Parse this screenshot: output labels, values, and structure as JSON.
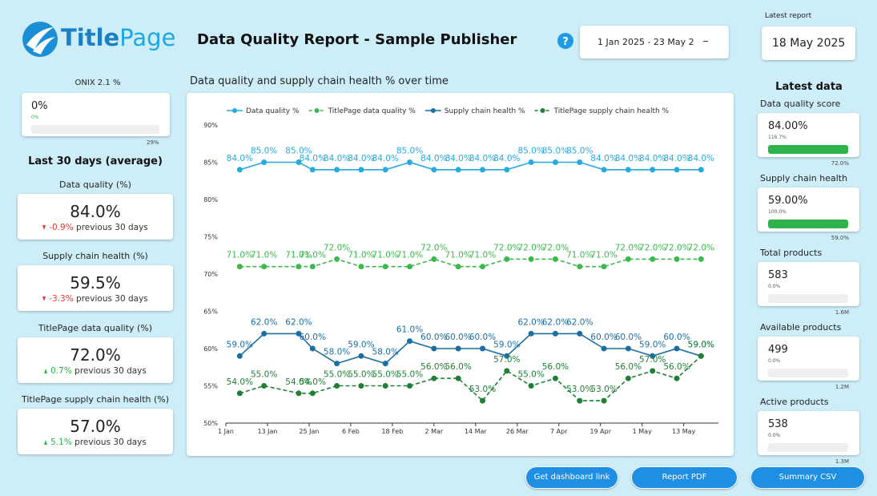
{
  "header": {
    "logo_bold": "Title",
    "logo_light": "Page",
    "title": "Data Quality Report - Sample Publisher",
    "date_range": "1 Jan 2025 - 23 May 2",
    "latest_report": {
      "label": "Latest report",
      "value": "18 May 2025"
    }
  },
  "onix": {
    "label": "ONIX 2.1 %",
    "value": "0%",
    "sub": "0%",
    "max": "29%"
  },
  "last30": {
    "heading": "Last 30 days (average)",
    "cards": [
      {
        "label": "Data quality (%)",
        "value": "84.0%",
        "delta": "-0.9%",
        "note": "previous 30 days"
      },
      {
        "label": "Supply chain health (%)",
        "value": "59.5%",
        "delta": "-3.3%",
        "note": "previous 30 days"
      },
      {
        "label": "TitlePage data quality (%)",
        "value": "72.0%",
        "delta": "0.7%",
        "note": "previous 30 days"
      },
      {
        "label": "TitlePage supply chain health (%)",
        "value": "57.0%",
        "delta": "5.1%",
        "note": "previous 30 days"
      }
    ]
  },
  "latest": {
    "heading": "Latest data",
    "cards": [
      {
        "label": "Data quality score",
        "value": "84.00%",
        "sub": "116.7%",
        "max": "72.0%",
        "color": "#2db34a"
      },
      {
        "label": "Supply chain health",
        "value": "59.00%",
        "sub": "100.0%",
        "max": "59.0%",
        "color": "#2db34a"
      },
      {
        "label": "Total products",
        "value": "583",
        "sub": "0.0%",
        "max": "1.6M",
        "color": "#eeeeee"
      },
      {
        "label": "Available products",
        "value": "499",
        "sub": "0.0%",
        "max": "1.2M",
        "color": "#eeeeee"
      },
      {
        "label": "Active products",
        "value": "538",
        "sub": "0.0%",
        "max": "1.3M",
        "color": "#eeeeee"
      }
    ]
  },
  "buttons": [
    "Get dashboard link",
    "Report PDF",
    "Summary CSV"
  ],
  "chart_data": {
    "type": "line",
    "title": "Data quality and supply chain health % over time",
    "x": [
      "5 Jan",
      "12 Jan",
      "22 Jan",
      "26 Jan",
      "2 Feb",
      "9 Feb",
      "16 Feb",
      "23 Feb",
      "2 Mar",
      "9 Mar",
      "16 Mar",
      "23 Mar",
      "30 Mar",
      "6 Apr",
      "13 Apr",
      "20 Apr",
      "27 Apr",
      "4 May",
      "11 May",
      "18 May"
    ],
    "xlim": [
      "1 Jan",
      "23 May"
    ],
    "xticks": [
      "1 Jan",
      "13 Jan",
      "25 Jan",
      "6 Feb",
      "18 Feb",
      "2 Mar",
      "14 Mar",
      "26 Mar",
      "7 Apr",
      "19 Apr",
      "1 May",
      "13 May"
    ],
    "ylim": [
      50,
      90
    ],
    "yticks": [
      {
        "value": 50,
        "label": "50%"
      },
      {
        "value": 55,
        "label": "55%"
      },
      {
        "value": 60,
        "label": "60%"
      },
      {
        "value": 65,
        "label": "65%"
      },
      {
        "value": 70,
        "label": "70%"
      },
      {
        "value": 75,
        "label": "75%"
      },
      {
        "value": 80,
        "label": "80%"
      },
      {
        "value": 85,
        "label": "85%"
      },
      {
        "value": 90,
        "label": "90%"
      }
    ],
    "grid": false,
    "series": [
      {
        "name": "Data quality %",
        "color": "#29a9e1",
        "dashed": false,
        "values": [
          84,
          85,
          85,
          84,
          84,
          84,
          84,
          85,
          84,
          84,
          84,
          84,
          85,
          85,
          85,
          84,
          84,
          84,
          84,
          84
        ],
        "value_labels": [
          "84.0%",
          "85.0%",
          "85.0%",
          "84.0%",
          "84.0%",
          "84.0%",
          "84.0%",
          "85.0%",
          "84.0%",
          "84.0%",
          "84.0%",
          "84.0%",
          "85.0%",
          "85.0%",
          "85.0%",
          "84.0%",
          "84.0%",
          "84.0%",
          "84.0%",
          "84.0%"
        ]
      },
      {
        "name": "TitlePage data quality %",
        "color": "#3cb84c",
        "dashed": true,
        "values": [
          71,
          71,
          71,
          71,
          72,
          71,
          71,
          71,
          72,
          71,
          71,
          72,
          72,
          72,
          71,
          71,
          72,
          72,
          72,
          72
        ],
        "value_labels": [
          "71.0%",
          "71.0%",
          "71.0%",
          "71.0%",
          "72.0%",
          "71.0%",
          "71.0%",
          "71.0%",
          "72.0%",
          "71.0%",
          "71.0%",
          "72.0%",
          "72.0%",
          "72.0%",
          "71.0%",
          "71.0%",
          "72.0%",
          "72.0%",
          "72.0%",
          "72.0%"
        ]
      },
      {
        "name": "Supply chain health %",
        "color": "#1b6fa0",
        "dashed": false,
        "values": [
          59,
          62,
          62,
          60,
          58,
          59,
          58,
          61,
          60,
          60,
          60,
          59,
          62,
          62,
          62,
          60,
          60,
          59,
          60,
          59
        ],
        "value_labels": [
          "59.0%",
          "62.0%",
          "62.0%",
          "60.0%",
          "58.0%",
          "59.0%",
          "58.0%",
          "61.0%",
          "60.0%",
          "60.0%",
          "60.0%",
          "59.0%",
          "62.0%",
          "62.0%",
          "62.0%",
          "60.0%",
          "60.0%",
          "59.0%",
          "60.0%",
          "59.0%"
        ]
      },
      {
        "name": "TitlePage supply chain health %",
        "color": "#1f7f37",
        "dashed": true,
        "values": [
          54,
          55,
          54,
          54,
          55,
          55,
          55,
          55,
          56,
          56,
          53,
          57,
          55,
          56,
          53,
          53,
          56,
          57,
          56,
          59
        ],
        "value_labels": [
          "54.0%",
          "55.0%",
          "54.0%",
          "54.0%",
          "55.0%",
          "55.0%",
          "55.0%",
          "55.0%",
          "56.0%",
          "56.0%",
          "53.0%",
          "57.0%",
          "55.0%",
          "56.0%",
          "53.0%",
          "53.0%",
          "56.0%",
          "57.0%",
          "56.0%",
          "59.0%"
        ]
      }
    ]
  }
}
